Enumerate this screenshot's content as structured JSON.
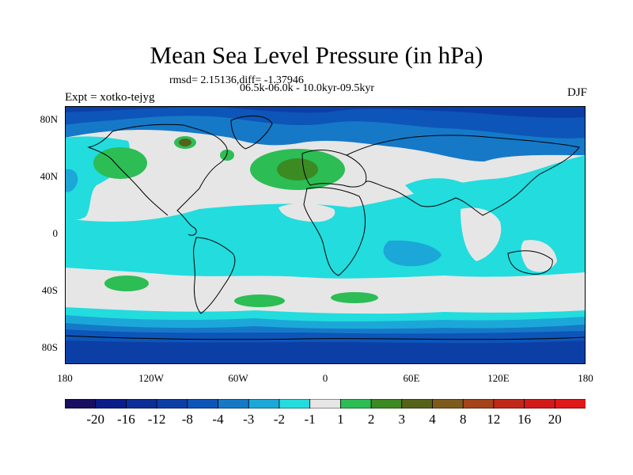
{
  "title": "Mean Sea Level Pressure (in hPa)",
  "stats_line": "rmsd= 2.15136,diff= -1.37946",
  "period_line": "06.5k-06.0k - 10.0kyr-09.5kyr",
  "experiment": "Expt = xotko-tejyg",
  "season": "DJF",
  "lat_labels": [
    "80N",
    "40N",
    "0",
    "40S",
    "80S"
  ],
  "lon_labels": [
    "180",
    "120W",
    "60W",
    "0",
    "60E",
    "120E",
    "180"
  ],
  "colorbar": {
    "labels": [
      "-20",
      "-16",
      "-12",
      "-8",
      "-4",
      "-3",
      "-2",
      "-1",
      "1",
      "2",
      "3",
      "4",
      "8",
      "12",
      "16",
      "20"
    ],
    "colors": [
      "#1a0e60",
      "#0a1e8a",
      "#0c2e96",
      "#0c3fa6",
      "#0d55b8",
      "#1579c8",
      "#1ba8d8",
      "#22dcde",
      "#e6e6e6",
      "#2cbd55",
      "#3c8a22",
      "#56621a",
      "#7e5a1c",
      "#a4441a",
      "#c2281a",
      "#d31a1a",
      "#e01818"
    ]
  }
}
